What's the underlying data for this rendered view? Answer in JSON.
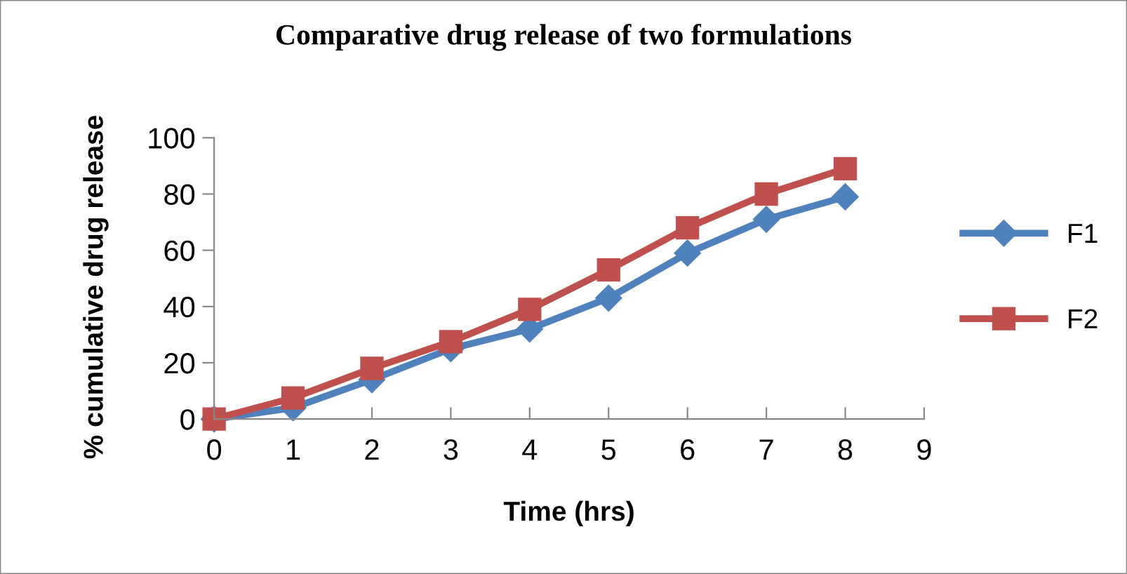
{
  "chart_data": {
    "type": "line",
    "title": "Comparative drug release of two formulations",
    "xlabel": "Time (hrs)",
    "ylabel": "% cumulative drug release",
    "x": [
      0,
      1,
      2,
      3,
      4,
      5,
      6,
      7,
      8
    ],
    "series": [
      {
        "name": "F1",
        "color": "#4f81bd",
        "marker": "diamond",
        "values": [
          0,
          4,
          14,
          25,
          32,
          43,
          59,
          71,
          79
        ]
      },
      {
        "name": "F2",
        "color": "#c0504d",
        "marker": "square",
        "values": [
          0,
          7.5,
          18,
          27.5,
          39,
          53,
          68,
          80,
          89
        ]
      }
    ],
    "xlim": [
      0,
      9
    ],
    "xticks": [
      0,
      1,
      2,
      3,
      4,
      5,
      6,
      7,
      8,
      9
    ],
    "ylim": [
      0,
      100
    ],
    "yticks": [
      0,
      20,
      40,
      60,
      80,
      100
    ],
    "grid": false,
    "legend": "right",
    "line_style": "solid"
  }
}
